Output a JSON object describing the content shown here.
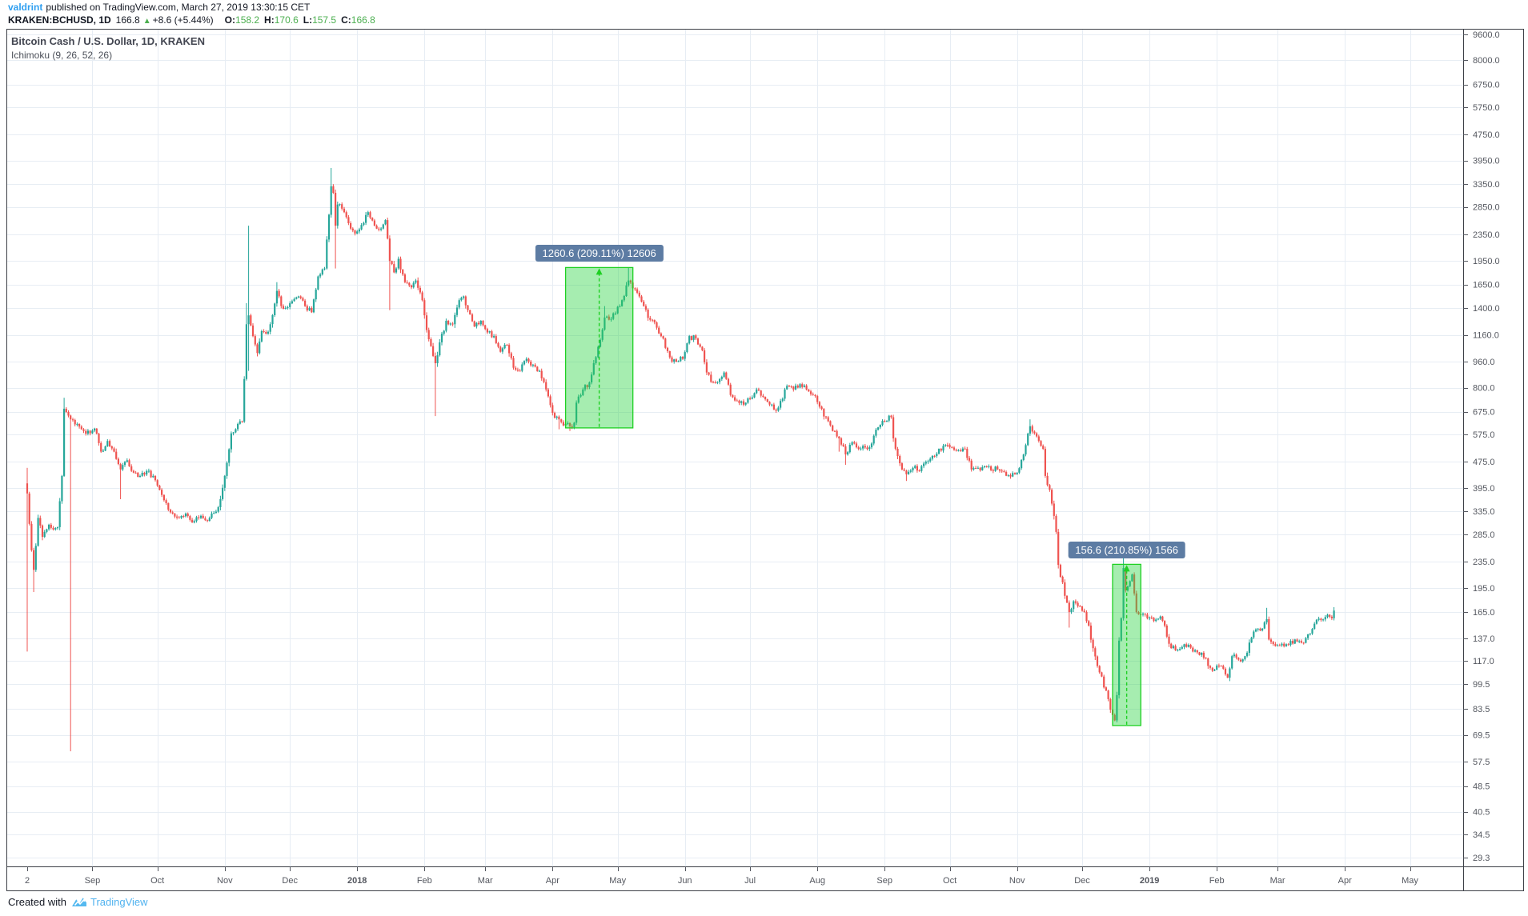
{
  "header": {
    "username": "valdrint",
    "published_text": "published on TradingView.com, March 27, 2019 13:30:15 CET",
    "symbol": "KRAKEN:BCHUSD, 1D",
    "last_price": "166.8",
    "change_arrow": "▲",
    "change_text": "+8.6 (+5.44%)",
    "ohlc": {
      "o_label": "O:",
      "o": "158.2",
      "h_label": "H:",
      "h": "170.6",
      "l_label": "L:",
      "l": "157.5",
      "c_label": "C:",
      "c": "166.8"
    }
  },
  "chart": {
    "title": "Bitcoin Cash / U.S. Dollar, 1D, KRAKEN",
    "indicator": "Ichimoku (9, 26, 52, 26)"
  },
  "footer": {
    "created_with": "Created with",
    "brand": "TradingView"
  },
  "colors": {
    "up": "#26a69a",
    "down": "#ef5350",
    "grid": "#e7edf4",
    "border": "#3c3f46",
    "axis_text": "#54575f",
    "measure_fill": "rgba(42,212,66,0.42)",
    "measure_line": "#1fd023",
    "label_bg": "#5d7ca3",
    "label_text": "#ffffff",
    "link": "#2f9ff0",
    "value_green": "#4caf50",
    "brand": "#50b2ef"
  },
  "chart_data": {
    "type": "candlestick",
    "title": "Bitcoin Cash / U.S. Dollar, 1D, KRAKEN",
    "scale": "log",
    "grid": true,
    "y_range": [
      29.3,
      9600
    ],
    "x_range": [
      "2017-08-02",
      "2019-05-25"
    ],
    "y_ticks": [
      "9600.0",
      "8000.0",
      "6750.0",
      "5750.0",
      "4750.0",
      "3950.0",
      "3350.0",
      "2850.0",
      "2350.0",
      "1950.0",
      "1650.0",
      "1400.0",
      "1160.0",
      "960.0",
      "800.0",
      "675.0",
      "575.0",
      "475.0",
      "395.0",
      "335.0",
      "285.0",
      "235.0",
      "195.0",
      "165.0",
      "137.0",
      "117.0",
      "99.5",
      "83.5",
      "69.5",
      "57.5",
      "48.5",
      "40.5",
      "34.5",
      "29.3"
    ],
    "x_ticks": [
      {
        "label": "2",
        "date": "2017-08-02",
        "bold": false
      },
      {
        "label": "Sep",
        "date": "2017-09-01",
        "bold": false
      },
      {
        "label": "Oct",
        "date": "2017-10-01",
        "bold": false
      },
      {
        "label": "Nov",
        "date": "2017-11-01",
        "bold": false
      },
      {
        "label": "Dec",
        "date": "2017-12-01",
        "bold": false
      },
      {
        "label": "2018",
        "date": "2018-01-01",
        "bold": true
      },
      {
        "label": "Feb",
        "date": "2018-02-01",
        "bold": false
      },
      {
        "label": "Mar",
        "date": "2018-03-01",
        "bold": false
      },
      {
        "label": "Apr",
        "date": "2018-04-01",
        "bold": false
      },
      {
        "label": "May",
        "date": "2018-05-01",
        "bold": false
      },
      {
        "label": "Jun",
        "date": "2018-06-01",
        "bold": false
      },
      {
        "label": "Jul",
        "date": "2018-07-01",
        "bold": false
      },
      {
        "label": "Aug",
        "date": "2018-08-01",
        "bold": false
      },
      {
        "label": "Sep",
        "date": "2018-09-01",
        "bold": false
      },
      {
        "label": "Oct",
        "date": "2018-10-01",
        "bold": false
      },
      {
        "label": "Nov",
        "date": "2018-11-01",
        "bold": false
      },
      {
        "label": "Dec",
        "date": "2018-12-01",
        "bold": false
      },
      {
        "label": "2019",
        "date": "2019-01-01",
        "bold": true
      },
      {
        "label": "Feb",
        "date": "2019-02-01",
        "bold": false
      },
      {
        "label": "Mar",
        "date": "2019-03-01",
        "bold": false
      },
      {
        "label": "Apr",
        "date": "2019-04-01",
        "bold": false
      },
      {
        "label": "May",
        "date": "2019-05-01",
        "bold": false
      }
    ],
    "anchors": [
      [
        "2017-08-02",
        380,
        455,
        125
      ],
      [
        "2017-08-04",
        255
      ],
      [
        "2017-08-05",
        222,
        null,
        190
      ],
      [
        "2017-08-07",
        320
      ],
      [
        "2017-08-09",
        280
      ],
      [
        "2017-08-12",
        305
      ],
      [
        "2017-08-14",
        295
      ],
      [
        "2017-08-16",
        300
      ],
      [
        "2017-08-18",
        430
      ],
      [
        "2017-08-19",
        690,
        745
      ],
      [
        "2017-08-22",
        640,
        null,
        62
      ],
      [
        "2017-08-25",
        620
      ],
      [
        "2017-08-28",
        590
      ],
      [
        "2017-08-31",
        580
      ],
      [
        "2017-09-02",
        600
      ],
      [
        "2017-09-05",
        510
      ],
      [
        "2017-09-08",
        550
      ],
      [
        "2017-09-11",
        510
      ],
      [
        "2017-09-14",
        450,
        null,
        365
      ],
      [
        "2017-09-17",
        480
      ],
      [
        "2017-09-20",
        440
      ],
      [
        "2017-09-23",
        430
      ],
      [
        "2017-09-26",
        445
      ],
      [
        "2017-09-29",
        430
      ],
      [
        "2017-10-02",
        390
      ],
      [
        "2017-10-05",
        355
      ],
      [
        "2017-10-08",
        330
      ],
      [
        "2017-10-11",
        320
      ],
      [
        "2017-10-14",
        330
      ],
      [
        "2017-10-17",
        310
      ],
      [
        "2017-10-20",
        320
      ],
      [
        "2017-10-23",
        315
      ],
      [
        "2017-10-26",
        330
      ],
      [
        "2017-10-29",
        345
      ],
      [
        "2017-11-01",
        430
      ],
      [
        "2017-11-04",
        580
      ],
      [
        "2017-11-07",
        620
      ],
      [
        "2017-11-09",
        630
      ],
      [
        "2017-11-10",
        850
      ],
      [
        "2017-11-11",
        1250,
        1450
      ],
      [
        "2017-11-12",
        1330,
        2500,
        900
      ],
      [
        "2017-11-14",
        1150
      ],
      [
        "2017-11-16",
        1020
      ],
      [
        "2017-11-18",
        1190
      ],
      [
        "2017-11-20",
        1170
      ],
      [
        "2017-11-22",
        1250
      ],
      [
        "2017-11-25",
        1580,
        1680
      ],
      [
        "2017-11-27",
        1420
      ],
      [
        "2017-11-29",
        1400
      ],
      [
        "2017-12-02",
        1470
      ],
      [
        "2017-12-05",
        1520
      ],
      [
        "2017-12-08",
        1420
      ],
      [
        "2017-12-11",
        1360
      ],
      [
        "2017-12-14",
        1750
      ],
      [
        "2017-12-17",
        1850
      ],
      [
        "2017-12-19",
        2700
      ],
      [
        "2017-12-20",
        3300,
        3750
      ],
      [
        "2017-12-21",
        3150
      ],
      [
        "2017-12-22",
        2500,
        null,
        1850
      ],
      [
        "2017-12-23",
        2900
      ],
      [
        "2017-12-26",
        2750
      ],
      [
        "2017-12-29",
        2450
      ],
      [
        "2018-01-01",
        2400
      ],
      [
        "2018-01-04",
        2550
      ],
      [
        "2018-01-06",
        2750
      ],
      [
        "2018-01-09",
        2500
      ],
      [
        "2018-01-12",
        2450
      ],
      [
        "2018-01-14",
        2600
      ],
      [
        "2018-01-16",
        1950,
        null,
        1380
      ],
      [
        "2018-01-18",
        1800
      ],
      [
        "2018-01-20",
        1980
      ],
      [
        "2018-01-23",
        1680
      ],
      [
        "2018-01-26",
        1620
      ],
      [
        "2018-01-28",
        1700
      ],
      [
        "2018-01-31",
        1480
      ],
      [
        "2018-02-02",
        1200
      ],
      [
        "2018-02-05",
        1000
      ],
      [
        "2018-02-06",
        950,
        null,
        655
      ],
      [
        "2018-02-08",
        1100
      ],
      [
        "2018-02-11",
        1280
      ],
      [
        "2018-02-14",
        1250
      ],
      [
        "2018-02-17",
        1480
      ],
      [
        "2018-02-19",
        1520
      ],
      [
        "2018-02-21",
        1380
      ],
      [
        "2018-02-24",
        1230
      ],
      [
        "2018-02-27",
        1280
      ],
      [
        "2018-03-02",
        1180
      ],
      [
        "2018-03-05",
        1150
      ],
      [
        "2018-03-08",
        1030
      ],
      [
        "2018-03-11",
        1080
      ],
      [
        "2018-03-14",
        920
      ],
      [
        "2018-03-17",
        900
      ],
      [
        "2018-03-20",
        980
      ],
      [
        "2018-03-23",
        940
      ],
      [
        "2018-03-26",
        900
      ],
      [
        "2018-03-29",
        790
      ],
      [
        "2018-04-01",
        670
      ],
      [
        "2018-04-04",
        640,
        null,
        597
      ],
      [
        "2018-04-07",
        620
      ],
      [
        "2018-04-09",
        610,
        null,
        590
      ],
      [
        "2018-04-11",
        625
      ],
      [
        "2018-04-12",
        720
      ],
      [
        "2018-04-15",
        790
      ],
      [
        "2018-04-18",
        830
      ],
      [
        "2018-04-20",
        950
      ],
      [
        "2018-04-23",
        1120
      ],
      [
        "2018-04-25",
        1310,
        1420
      ],
      [
        "2018-04-27",
        1290
      ],
      [
        "2018-04-30",
        1350
      ],
      [
        "2018-05-03",
        1480
      ],
      [
        "2018-05-06",
        1700,
        1863
      ],
      [
        "2018-05-08",
        1610
      ],
      [
        "2018-05-10",
        1560
      ],
      [
        "2018-05-13",
        1420
      ],
      [
        "2018-05-16",
        1290
      ],
      [
        "2018-05-19",
        1220
      ],
      [
        "2018-05-22",
        1130
      ],
      [
        "2018-05-25",
        990
      ],
      [
        "2018-05-28",
        960
      ],
      [
        "2018-05-31",
        980
      ],
      [
        "2018-06-03",
        1150
      ],
      [
        "2018-06-06",
        1130
      ],
      [
        "2018-06-09",
        1040
      ],
      [
        "2018-06-11",
        890
      ],
      [
        "2018-06-14",
        830
      ],
      [
        "2018-06-17",
        850
      ],
      [
        "2018-06-19",
        890
      ],
      [
        "2018-06-22",
        760
      ],
      [
        "2018-06-25",
        730
      ],
      [
        "2018-06-28",
        710
      ],
      [
        "2018-07-01",
        740
      ],
      [
        "2018-07-04",
        790
      ],
      [
        "2018-07-07",
        750
      ],
      [
        "2018-07-10",
        710
      ],
      [
        "2018-07-13",
        680
      ],
      [
        "2018-07-16",
        740
      ],
      [
        "2018-07-18",
        810
      ],
      [
        "2018-07-21",
        790
      ],
      [
        "2018-07-24",
        820
      ],
      [
        "2018-07-27",
        790
      ],
      [
        "2018-07-30",
        760
      ],
      [
        "2018-08-02",
        700
      ],
      [
        "2018-08-05",
        650
      ],
      [
        "2018-08-08",
        590
      ],
      [
        "2018-08-11",
        560,
        null,
        510
      ],
      [
        "2018-08-14",
        500,
        null,
        465
      ],
      [
        "2018-08-17",
        545
      ],
      [
        "2018-08-20",
        520
      ],
      [
        "2018-08-23",
        525
      ],
      [
        "2018-08-26",
        540
      ],
      [
        "2018-08-29",
        605
      ],
      [
        "2018-09-01",
        630
      ],
      [
        "2018-09-04",
        650
      ],
      [
        "2018-09-05",
        560
      ],
      [
        "2018-09-08",
        470
      ],
      [
        "2018-09-11",
        435,
        null,
        415
      ],
      [
        "2018-09-14",
        455
      ],
      [
        "2018-09-17",
        445
      ],
      [
        "2018-09-20",
        475
      ],
      [
        "2018-09-23",
        495
      ],
      [
        "2018-09-26",
        520
      ],
      [
        "2018-09-29",
        535
      ],
      [
        "2018-10-02",
        525
      ],
      [
        "2018-10-05",
        515
      ],
      [
        "2018-10-08",
        520
      ],
      [
        "2018-10-11",
        450
      ],
      [
        "2018-10-14",
        455
      ],
      [
        "2018-10-17",
        460
      ],
      [
        "2018-10-20",
        448
      ],
      [
        "2018-10-23",
        450
      ],
      [
        "2018-10-26",
        442
      ],
      [
        "2018-10-29",
        428
      ],
      [
        "2018-11-01",
        440
      ],
      [
        "2018-11-04",
        500
      ],
      [
        "2018-11-07",
        610,
        640
      ],
      [
        "2018-11-09",
        580
      ],
      [
        "2018-11-11",
        550
      ],
      [
        "2018-11-13",
        520
      ],
      [
        "2018-11-14",
        430
      ],
      [
        "2018-11-16",
        390
      ],
      [
        "2018-11-19",
        290
      ],
      [
        "2018-11-20",
        230
      ],
      [
        "2018-11-23",
        185
      ],
      [
        "2018-11-25",
        165,
        null,
        148
      ],
      [
        "2018-11-27",
        178
      ],
      [
        "2018-11-29",
        172
      ],
      [
        "2018-12-02",
        165
      ],
      [
        "2018-12-04",
        150
      ],
      [
        "2018-12-06",
        128
      ],
      [
        "2018-12-09",
        108
      ],
      [
        "2018-12-12",
        95
      ],
      [
        "2018-12-15",
        80,
        null,
        74
      ],
      [
        "2018-12-16",
        77
      ],
      [
        "2018-12-17",
        92
      ],
      [
        "2018-12-18",
        135
      ],
      [
        "2018-12-19",
        158
      ],
      [
        "2018-12-20",
        225,
        242
      ],
      [
        "2018-12-21",
        192
      ],
      [
        "2018-12-23",
        205
      ],
      [
        "2018-12-24",
        215
      ],
      [
        "2018-12-26",
        165
      ],
      [
        "2018-12-28",
        162
      ],
      [
        "2018-12-31",
        158
      ],
      [
        "2019-01-03",
        155
      ],
      [
        "2019-01-06",
        160
      ],
      [
        "2019-01-08",
        150
      ],
      [
        "2019-01-10",
        132
      ],
      [
        "2019-01-13",
        126
      ],
      [
        "2019-01-16",
        129
      ],
      [
        "2019-01-19",
        131
      ],
      [
        "2019-01-22",
        126
      ],
      [
        "2019-01-25",
        124
      ],
      [
        "2019-01-28",
        113
      ],
      [
        "2019-01-31",
        110
      ],
      [
        "2019-02-03",
        113
      ],
      [
        "2019-02-06",
        104
      ],
      [
        "2019-02-08",
        121
      ],
      [
        "2019-02-11",
        118
      ],
      [
        "2019-02-14",
        121
      ],
      [
        "2019-02-17",
        138
      ],
      [
        "2019-02-19",
        146
      ],
      [
        "2019-02-22",
        147
      ],
      [
        "2019-02-24",
        157,
        170
      ],
      [
        "2019-02-25",
        136
      ],
      [
        "2019-02-28",
        130
      ],
      [
        "2019-03-03",
        132
      ],
      [
        "2019-03-06",
        131
      ],
      [
        "2019-03-09",
        136
      ],
      [
        "2019-03-12",
        133
      ],
      [
        "2019-03-15",
        141
      ],
      [
        "2019-03-18",
        152
      ],
      [
        "2019-03-21",
        156
      ],
      [
        "2019-03-24",
        162
      ],
      [
        "2019-03-26",
        158
      ],
      [
        "2019-03-27",
        166.8
      ]
    ],
    "measurements": [
      {
        "label": "1260.6 (209.11%) 12606",
        "start_date": "2018-04-07",
        "end_date": "2018-05-08",
        "from_price": 603,
        "to_price": 1863
      },
      {
        "label": "156.6 (210.85%) 1566",
        "start_date": "2018-12-15",
        "end_date": "2018-12-28",
        "from_price": 74.3,
        "to_price": 230.9
      }
    ]
  }
}
